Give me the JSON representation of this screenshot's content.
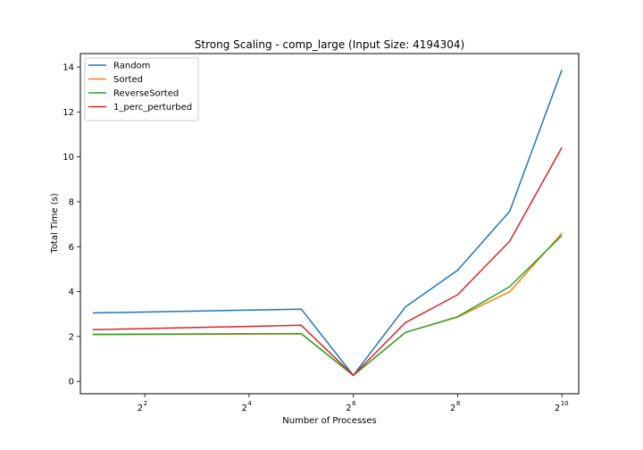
{
  "chart_data": {
    "type": "line",
    "title": "Strong Scaling - comp_large (Input Size: 4194304)",
    "xlabel": "Number of Processes",
    "ylabel": "Total Time (s)",
    "x_scale": "log2",
    "x": [
      2,
      4,
      8,
      16,
      32,
      64,
      128,
      256,
      512,
      1024
    ],
    "xlim": [
      1.7,
      1280
    ],
    "ylim": [
      -0.55,
      14.6
    ],
    "x_ticks": [
      {
        "value": 4,
        "base": "2",
        "exp": "2"
      },
      {
        "value": 16,
        "base": "2",
        "exp": "4"
      },
      {
        "value": 64,
        "base": "2",
        "exp": "6"
      },
      {
        "value": 256,
        "base": "2",
        "exp": "8"
      },
      {
        "value": 1024,
        "base": "2",
        "exp": "10"
      }
    ],
    "y_ticks": [
      {
        "value": 0,
        "label": "0"
      },
      {
        "value": 2,
        "label": "2"
      },
      {
        "value": 4,
        "label": "4"
      },
      {
        "value": 6,
        "label": "6"
      },
      {
        "value": 8,
        "label": "8"
      },
      {
        "value": 10,
        "label": "10"
      },
      {
        "value": 12,
        "label": "12"
      },
      {
        "value": 14,
        "label": "14"
      }
    ],
    "grid": false,
    "legend_position": "upper-left",
    "series": [
      {
        "name": "Random",
        "color": "#1f77b4",
        "points": [
          [
            2,
            3.05
          ],
          [
            32,
            3.22
          ],
          [
            64,
            0.27
          ],
          [
            128,
            3.32
          ],
          [
            256,
            4.95
          ],
          [
            512,
            7.58
          ],
          [
            1024,
            13.88
          ]
        ]
      },
      {
        "name": "Sorted",
        "color": "#ff7f0e",
        "points": [
          [
            2,
            2.08
          ],
          [
            32,
            2.12
          ],
          [
            64,
            0.27
          ],
          [
            128,
            2.18
          ],
          [
            256,
            2.86
          ],
          [
            512,
            4.0
          ],
          [
            1024,
            6.6
          ]
        ]
      },
      {
        "name": "ReverseSorted",
        "color": "#2ca02c",
        "points": [
          [
            2,
            2.1
          ],
          [
            32,
            2.13
          ],
          [
            64,
            0.27
          ],
          [
            128,
            2.18
          ],
          [
            256,
            2.88
          ],
          [
            512,
            4.22
          ],
          [
            1024,
            6.5
          ]
        ]
      },
      {
        "name": "1_perc_perturbed",
        "color": "#d62728",
        "points": [
          [
            2,
            2.3
          ],
          [
            32,
            2.5
          ],
          [
            64,
            0.27
          ],
          [
            128,
            2.62
          ],
          [
            256,
            3.86
          ],
          [
            512,
            6.25
          ],
          [
            1024,
            10.42
          ]
        ]
      }
    ]
  }
}
